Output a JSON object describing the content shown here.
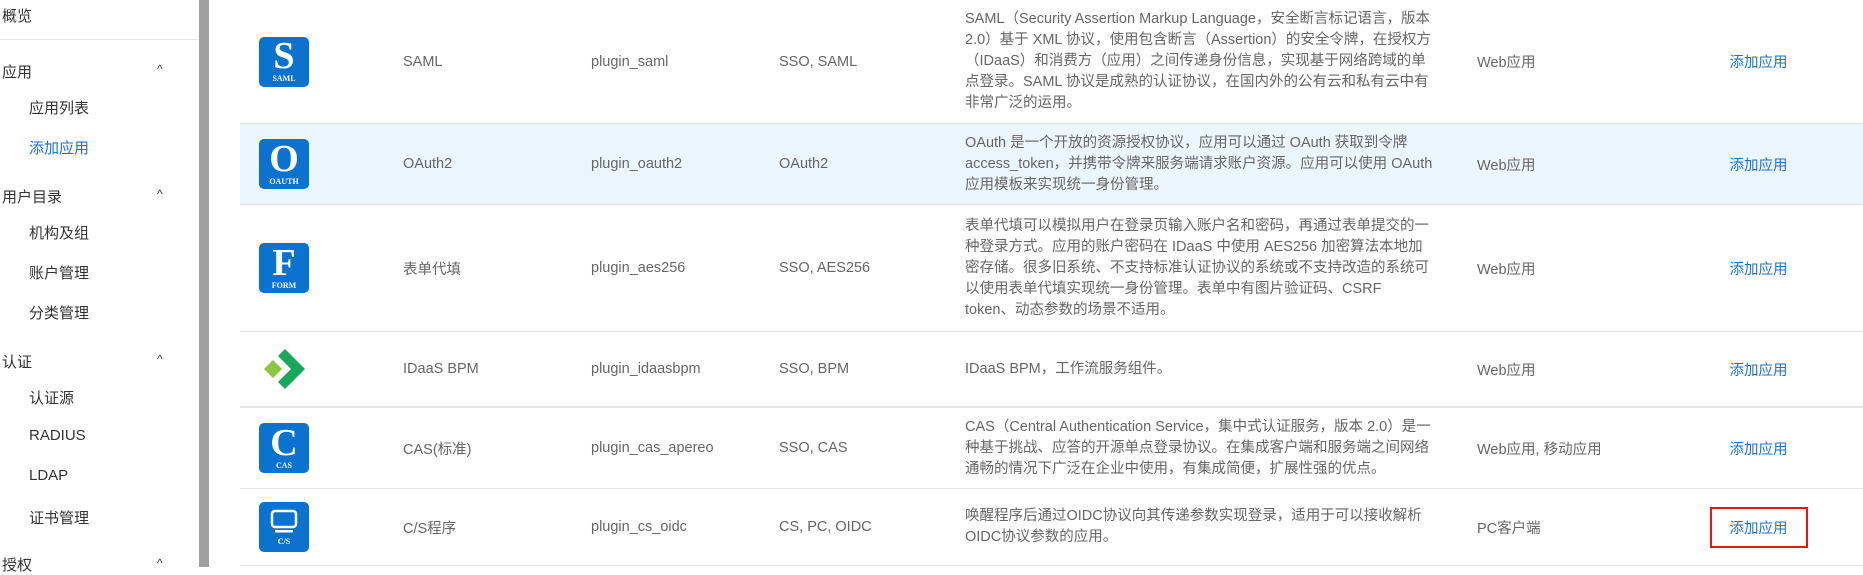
{
  "sidebar": {
    "overview": "概览",
    "groups": [
      {
        "label": "应用",
        "items": [
          "应用列表",
          "添加应用"
        ]
      },
      {
        "label": "用户目录",
        "items": [
          "机构及组",
          "账户管理",
          "分类管理"
        ]
      },
      {
        "label": "认证",
        "items": [
          "认证源",
          "RADIUS",
          "LDAP",
          "证书管理"
        ]
      },
      {
        "label": "授权",
        "items": []
      }
    ],
    "active_item": "添加应用",
    "chevron": "chevron-up-icon"
  },
  "colors": {
    "accent": "#1a73d1",
    "icon_blue": "#0b72cf",
    "highlight_row": "#eaf5fd",
    "annotation_box": "#e8161b"
  },
  "rows": [
    {
      "icon": {
        "letter": "S",
        "caption": "SAML"
      },
      "name": "SAML",
      "plugin_id": "plugin_saml",
      "protocol": "SSO, SAML",
      "description": "SAML（Security Assertion Markup Language，安全断言标记语言，版本 2.0）基于 XML 协议，使用包含断言（Assertion）的安全令牌，在授权方（IDaaS）和消费方（应用）之间传递身份信息，实现基于网络跨域的单点登录。SAML 协议是成熟的认证协议，在国内外的公有云和私有云中有非常广泛的运用。",
      "type": "Web应用",
      "action": "添加应用"
    },
    {
      "icon": {
        "letter": "O",
        "caption": "OAUTH"
      },
      "name": "OAuth2",
      "plugin_id": "plugin_oauth2",
      "protocol": "OAuth2",
      "description": "OAuth 是一个开放的资源授权协议，应用可以通过 OAuth 获取到令牌 access_token，并携带令牌来服务端请求账户资源。应用可以使用 OAuth 应用模板来实现统一身份管理。",
      "type": "Web应用",
      "action": "添加应用"
    },
    {
      "icon": {
        "letter": "F",
        "caption": "FORM"
      },
      "name": "表单代填",
      "plugin_id": "plugin_aes256",
      "protocol": "SSO, AES256",
      "description": "表单代填可以模拟用户在登录页输入账户名和密码，再通过表单提交的一种登录方式。应用的账户密码在 IDaaS 中使用 AES256 加密算法本地加密存储。很多旧系统、不支持标准认证协议的系统或不支持改造的系统可以使用表单代填实现统一身份管理。表单中有图片验证码、CSRF token、动态参数的场景不适用。",
      "type": "Web应用",
      "action": "添加应用"
    },
    {
      "icon": {
        "name": "idaas-bpm-logo"
      },
      "name": "IDaaS BPM",
      "plugin_id": "plugin_idaasbpm",
      "protocol": "SSO, BPM",
      "description": "IDaaS BPM，工作流服务组件。",
      "type": "Web应用",
      "action": "添加应用"
    },
    {
      "icon": {
        "letter": "C",
        "caption": "CAS"
      },
      "name": "CAS(标准)",
      "plugin_id": "plugin_cas_apereo",
      "protocol": "SSO, CAS",
      "description": "CAS（Central Authentication Service，集中式认证服务，版本 2.0）是一种基于挑战、应答的开源单点登录协议。在集成客户端和服务端之间网络通畅的情况下广泛在企业中使用，有集成简便，扩展性强的优点。",
      "type": "Web应用, 移动应用",
      "action": "添加应用"
    },
    {
      "icon": {
        "name": "monitor-icon",
        "caption": "C/S"
      },
      "name": "C/S程序",
      "plugin_id": "plugin_cs_oidc",
      "protocol": "CS, PC, OIDC",
      "description": "唤醒程序后通过OIDC协议向其传递参数实现登录，适用于可以接收解析OIDC协议参数的应用。",
      "type": "PC客户端",
      "action": "添加应用"
    }
  ]
}
